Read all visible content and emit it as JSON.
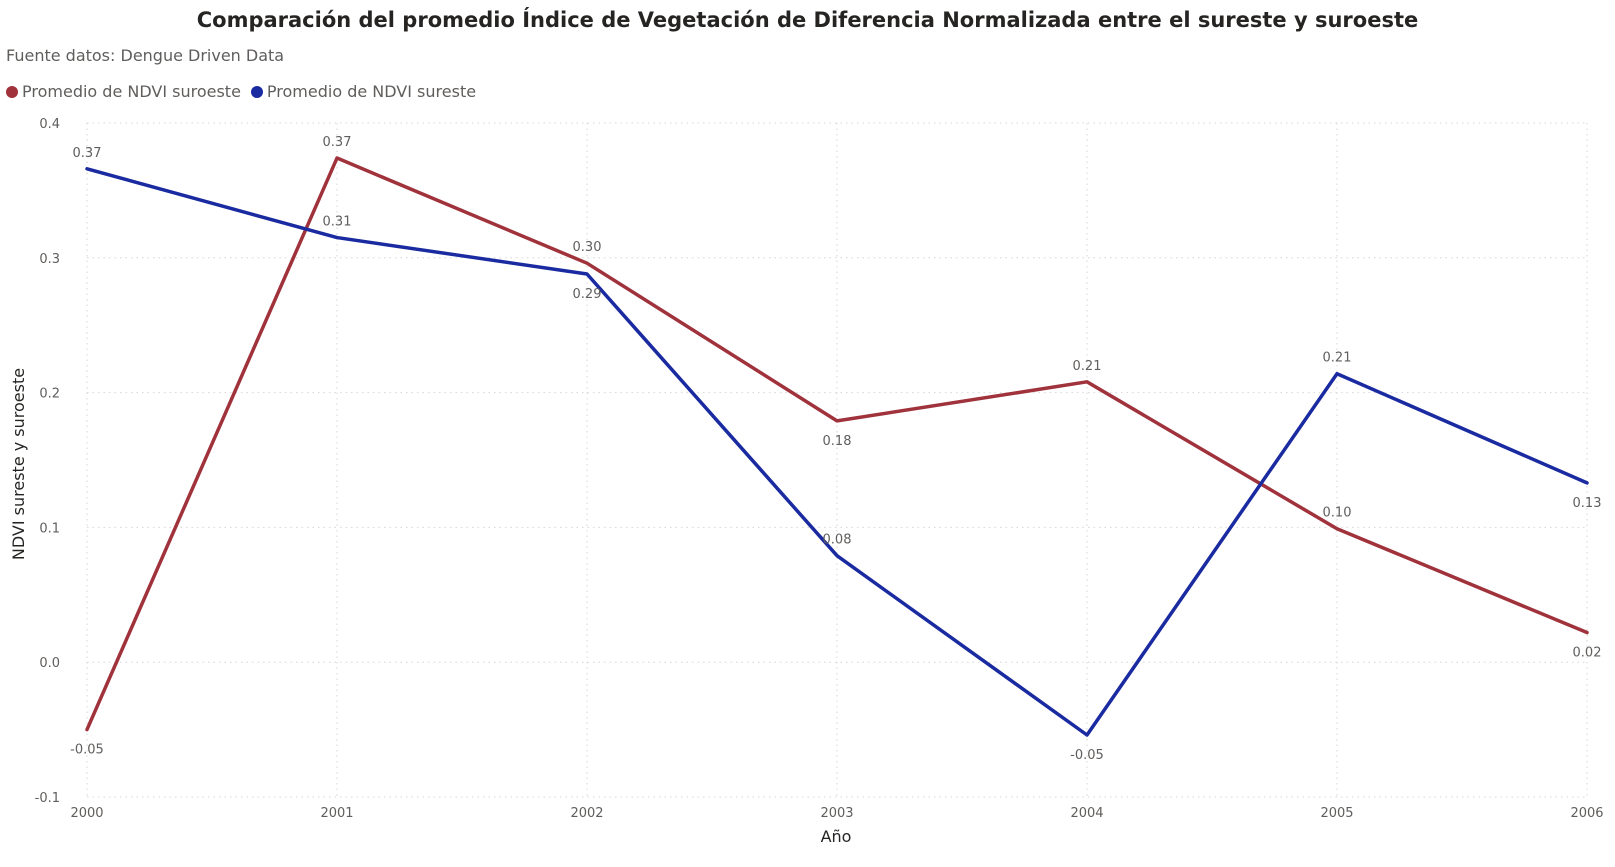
{
  "title": "Comparación del promedio Índice de Vegetación de Diferencia Normalizada entre el sureste y suroeste",
  "subtitle": "Fuente datos: Dengue Driven Data",
  "legend": {
    "items": [
      {
        "label": "Promedio de NDVI suroeste",
        "color": "#a0323c"
      },
      {
        "label": "Promedio de NDVI sureste",
        "color": "#1a2aa0"
      }
    ]
  },
  "chart_data": {
    "type": "line",
    "title": "Comparación del promedio Índice de Vegetación de Diferencia Normalizada entre el sureste y suroeste",
    "subtitle": "Fuente datos: Dengue Driven Data",
    "xlabel": "Año",
    "ylabel": "NDVI sureste y suroeste",
    "x": [
      "2000",
      "2001",
      "2002",
      "2003",
      "2004",
      "2005",
      "2006"
    ],
    "ylim": [
      -0.1,
      0.4
    ],
    "yticks": [
      -0.1,
      0.0,
      0.1,
      0.2,
      0.3,
      0.4
    ],
    "ytick_labels": [
      "-0.1",
      "0.0",
      "0.1",
      "0.2",
      "0.3",
      "0.4"
    ],
    "grid": true,
    "legend_position": "top-left",
    "series": [
      {
        "name": "Promedio de NDVI suroeste",
        "color": "#a0323c",
        "values": [
          -0.05,
          0.374,
          0.296,
          0.179,
          0.208,
          0.099,
          0.022
        ],
        "labels": [
          "-0.05",
          "0.37",
          "0.30",
          "0.18",
          "0.21",
          "0.10",
          "0.02"
        ],
        "label_side": [
          "below",
          "above",
          "above",
          "below",
          "above",
          "above",
          "below"
        ]
      },
      {
        "name": "Promedio de NDVI sureste",
        "color": "#1a2aa0",
        "values": [
          0.366,
          0.315,
          0.288,
          0.079,
          -0.054,
          0.214,
          0.133
        ],
        "labels": [
          "0.37",
          "0.31",
          "0.29",
          "0.08",
          "-0.05",
          "0.21",
          "0.13"
        ],
        "label_side": [
          "above",
          "above",
          "below",
          "above",
          "below",
          "above",
          "below"
        ]
      }
    ]
  }
}
